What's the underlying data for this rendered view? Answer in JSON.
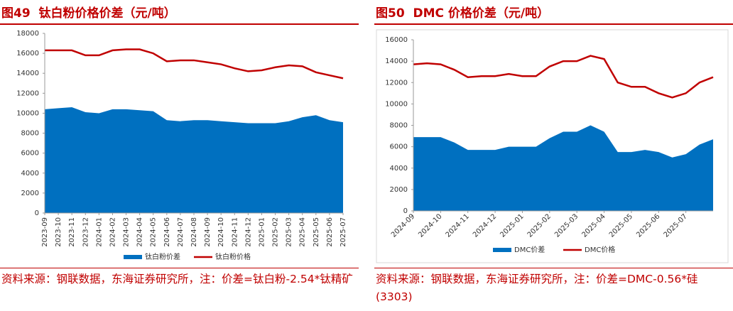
{
  "chart_data": [
    {
      "type": "area-line",
      "title": "图49  钛白粉价格价差（元/吨）",
      "categories": [
        "2023-09",
        "2023-10",
        "2023-11",
        "2023-12",
        "2024-01",
        "2024-02",
        "2024-03",
        "2024-04",
        "2024-05",
        "2024-06",
        "2024-07",
        "2024-08",
        "2024-09",
        "2024-10",
        "2024-11",
        "2024-12",
        "2025-01",
        "2025-02",
        "2025-03",
        "2025-04",
        "2025-05",
        "2025-06",
        "2025-07"
      ],
      "series": [
        {
          "name": "钛白粉价差",
          "kind": "area",
          "color": "#0070c0",
          "values": [
            10400,
            10500,
            10600,
            10100,
            10000,
            10400,
            10400,
            10300,
            10200,
            9300,
            9200,
            9300,
            9300,
            9200,
            9100,
            9000,
            9000,
            9000,
            9200,
            9600,
            9800,
            9300,
            9100
          ]
        },
        {
          "name": "钛白粉价格",
          "kind": "line",
          "color": "#c00000",
          "values": [
            16300,
            16300,
            16300,
            15800,
            15800,
            16300,
            16400,
            16400,
            16000,
            15200,
            15300,
            15300,
            15100,
            14900,
            14500,
            14200,
            14300,
            14600,
            14800,
            14700,
            14100,
            13800,
            13500
          ]
        }
      ],
      "ylim": [
        0,
        18000
      ],
      "yticks": [
        0,
        2000,
        4000,
        6000,
        8000,
        10000,
        12000,
        14000,
        16000,
        18000
      ],
      "source": "资料来源：钢联数据，东海证券研究所，注：价差=钛白粉-2.54*钛精矿"
    },
    {
      "type": "area-line",
      "title": "图50  DMC 价格价差（元/吨）",
      "categories": [
        "2024-09",
        null,
        "2024-10",
        null,
        "2024-11",
        null,
        "2024-12",
        null,
        "2025-01",
        null,
        "2025-02",
        null,
        "2025-03",
        null,
        "2025-04",
        null,
        "2025-05",
        null,
        "2025-06",
        null,
        "2025-07",
        null,
        null
      ],
      "series": [
        {
          "name": "DMC价差",
          "kind": "area",
          "color": "#0070c0",
          "values": [
            6900,
            6900,
            6900,
            6400,
            5700,
            5700,
            5700,
            6000,
            6000,
            6000,
            6800,
            7400,
            7400,
            8000,
            7400,
            5500,
            5500,
            5700,
            5500,
            5000,
            5300,
            6200,
            6700
          ]
        },
        {
          "name": "DMC价格",
          "kind": "line",
          "color": "#c00000",
          "values": [
            13700,
            13800,
            13700,
            13200,
            12500,
            12600,
            12600,
            12800,
            12600,
            12600,
            13500,
            14000,
            14000,
            14500,
            14200,
            12000,
            11600,
            11600,
            11000,
            10600,
            11000,
            12000,
            12500
          ]
        }
      ],
      "ylim": [
        0,
        16000
      ],
      "yticks": [
        0,
        2000,
        4000,
        6000,
        8000,
        10000,
        12000,
        14000,
        16000
      ],
      "frame": true,
      "source": "资料来源：钢联数据，东海证券研究所，注：价差=DMC-0.56*硅(3303)"
    }
  ]
}
